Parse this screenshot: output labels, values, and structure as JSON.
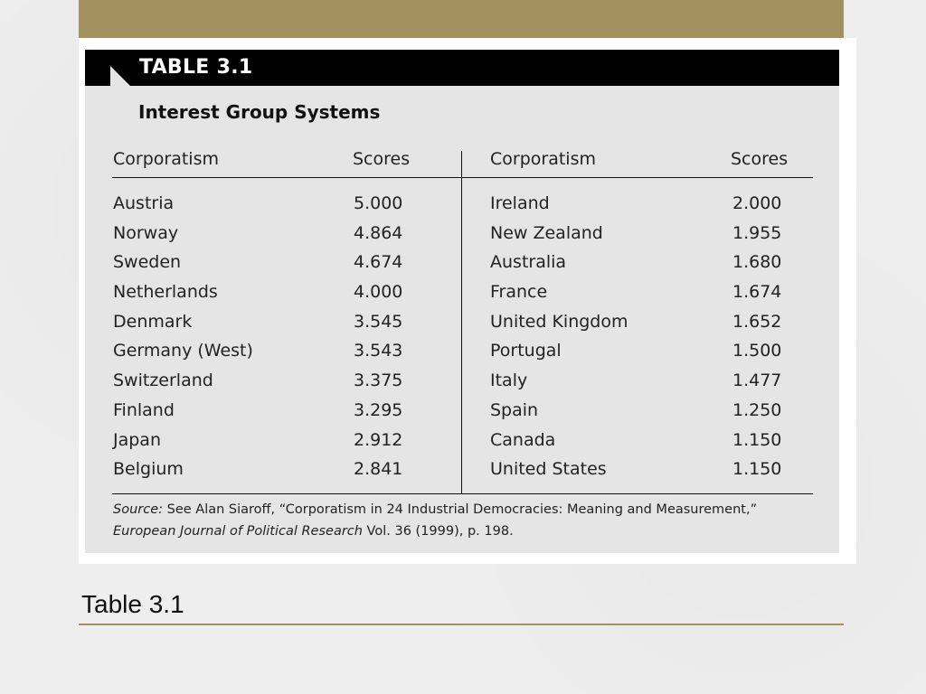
{
  "table": {
    "label": "TABLE 3.1",
    "title": "Interest Group Systems",
    "left_headers": {
      "country": "Corporatism",
      "score": "Scores"
    },
    "right_headers": {
      "country": "Corporatism",
      "score": "Scores"
    },
    "left_rows": [
      {
        "country": "Austria",
        "score": "5.000"
      },
      {
        "country": "Norway",
        "score": "4.864"
      },
      {
        "country": "Sweden",
        "score": "4.674"
      },
      {
        "country": "Netherlands",
        "score": "4.000"
      },
      {
        "country": "Denmark",
        "score": "3.545"
      },
      {
        "country": "Germany (West)",
        "score": "3.543"
      },
      {
        "country": "Switzerland",
        "score": "3.375"
      },
      {
        "country": "Finland",
        "score": "3.295"
      },
      {
        "country": "Japan",
        "score": "2.912"
      },
      {
        "country": "Belgium",
        "score": "2.841"
      }
    ],
    "right_rows": [
      {
        "country": "Ireland",
        "score": "2.000"
      },
      {
        "country": "New Zealand",
        "score": "1.955"
      },
      {
        "country": "Australia",
        "score": "1.680"
      },
      {
        "country": "France",
        "score": "1.674"
      },
      {
        "country": "United Kingdom",
        "score": "1.652"
      },
      {
        "country": "Portugal",
        "score": "1.500"
      },
      {
        "country": "Italy",
        "score": "1.477"
      },
      {
        "country": "Spain",
        "score": "1.250"
      },
      {
        "country": "Canada",
        "score": "1.150"
      },
      {
        "country": "United States",
        "score": "1.150"
      }
    ],
    "source": {
      "label": "Source:",
      "text_line1": " See Alan Siaroff, “Corporatism in 24 Industrial Democracies: Meaning and Measurement,”",
      "journal": "European Journal of Political Research",
      "text_line2": " Vol. 36 (1999), p. 198."
    }
  },
  "slide": {
    "title": "Table 3.1"
  },
  "colors": {
    "accent": "#a1925f",
    "header_bg": "#000000",
    "panel_bg": "#e5e5e5"
  }
}
